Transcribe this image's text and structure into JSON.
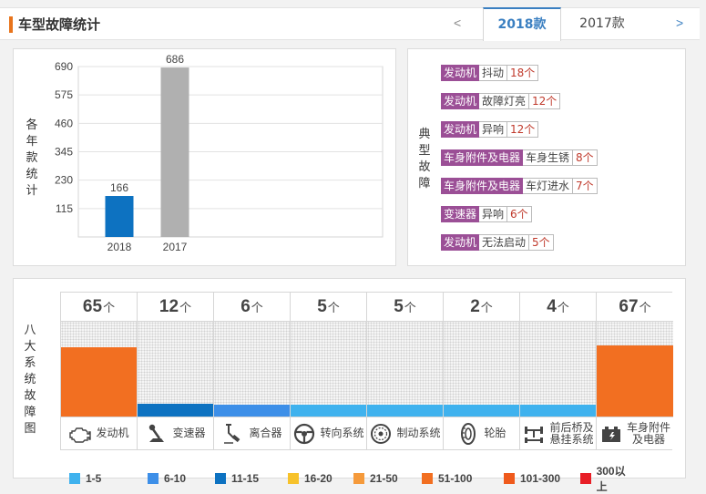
{
  "header": {
    "title": "车型故障统计",
    "prev_arrow": "<",
    "next_arrow": ">",
    "tabs": [
      {
        "label": "2018款",
        "active": true
      },
      {
        "label": "2017款",
        "active": false
      }
    ]
  },
  "yearly_chart": {
    "side_label": "各年款统计",
    "chart_data": {
      "type": "bar",
      "categories": [
        "2018",
        "2017"
      ],
      "values": [
        166,
        686
      ],
      "colors": [
        "#0d72c1",
        "#b0b0b0"
      ],
      "yticks": [
        115,
        230,
        345,
        460,
        575,
        690
      ],
      "ylim": [
        0,
        690
      ],
      "grid": true
    }
  },
  "typical_faults": {
    "side_label": "典型故障",
    "items": [
      {
        "system": "发动机",
        "fault": "抖动",
        "count": "18个"
      },
      {
        "system": "发动机",
        "fault": "故障灯亮",
        "count": "12个"
      },
      {
        "system": "发动机",
        "fault": "异响",
        "count": "12个"
      },
      {
        "system": "车身附件及电器",
        "fault": "车身生锈",
        "count": "8个"
      },
      {
        "system": "车身附件及电器",
        "fault": "车灯进水",
        "count": "7个"
      },
      {
        "system": "变速器",
        "fault": "异响",
        "count": "6个"
      },
      {
        "system": "发动机",
        "fault": "无法启动",
        "count": "5个"
      }
    ]
  },
  "eight_systems": {
    "side_label": "八大系统故障图",
    "unit": "个",
    "chart_data": {
      "type": "bar",
      "categories": [
        "发动机",
        "变速器",
        "离合器",
        "转向系统",
        "制动系统",
        "轮胎",
        "前后桥及悬挂系统",
        "车身附件及电器"
      ],
      "values": [
        65,
        12,
        6,
        5,
        5,
        2,
        4,
        67
      ],
      "bar_colors": [
        "#f26f21",
        "#0d72c1",
        "#3d8fe8",
        "#3fb2ee",
        "#3fb2ee",
        "#3fb2ee",
        "#3fb2ee",
        "#f26f21"
      ]
    },
    "systems": [
      {
        "count": "65",
        "label": "发动机",
        "icon": "engine-icon"
      },
      {
        "count": "12",
        "label": "变速器",
        "icon": "gearshift-icon"
      },
      {
        "count": "6",
        "label": "离合器",
        "icon": "clutch-pedal-icon"
      },
      {
        "count": "5",
        "label": "转向系统",
        "icon": "steering-wheel-icon"
      },
      {
        "count": "5",
        "label": "制动系统",
        "icon": "brake-disc-icon"
      },
      {
        "count": "2",
        "label": "轮胎",
        "icon": "tire-icon"
      },
      {
        "count": "4",
        "label": "前后桥及悬挂系统",
        "label_lines": [
          "前后桥及",
          "悬挂系统"
        ],
        "icon": "axle-suspension-icon"
      },
      {
        "count": "67",
        "label": "车身附件及电器",
        "label_lines": [
          "车身附件",
          "及电器"
        ],
        "icon": "car-battery-icon"
      }
    ]
  },
  "legend": [
    {
      "label": "1-5",
      "color": "#3fb2ee"
    },
    {
      "label": "6-10",
      "color": "#3d8fe8"
    },
    {
      "label": "11-15",
      "color": "#0d72c1"
    },
    {
      "label": "16-20",
      "color": "#f7c22b"
    },
    {
      "label": "21-50",
      "color": "#f59a3b"
    },
    {
      "label": "51-100",
      "color": "#f26f21"
    },
    {
      "label": "101-300",
      "color": "#ef5a1c"
    },
    {
      "label": "300以上",
      "color": "#e81f27"
    }
  ]
}
